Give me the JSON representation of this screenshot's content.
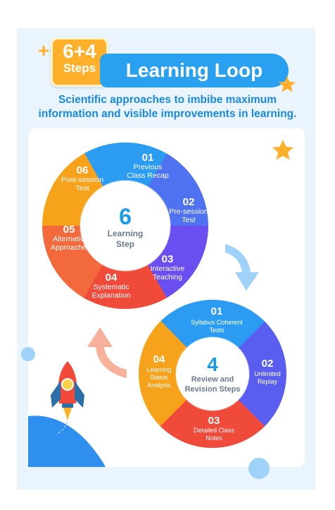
{
  "header": {
    "plus": "+",
    "badge_top": "6+4",
    "badge_bottom": "Steps",
    "title": "Learning Loop",
    "subtitle_line1": "Scientific approaches to imbibe maximum",
    "subtitle_line2": "information and visible improvements in learning."
  },
  "loop1": {
    "center_number": "6",
    "center_line1": "Learning",
    "center_line2": "Step",
    "steps": [
      {
        "num": "01",
        "line1": "Previous",
        "line2": "Class Recap",
        "color": "#2b9cf2"
      },
      {
        "num": "02",
        "line1": "Pre-session",
        "line2": "Test",
        "color": "#4f73f0"
      },
      {
        "num": "03",
        "line1": "Interactive",
        "line2": "Teaching",
        "color": "#6a4ef0"
      },
      {
        "num": "04",
        "line1": "Systematic",
        "line2": "Explanation",
        "color": "#f04a3a"
      },
      {
        "num": "05",
        "line1": "Alternative",
        "line2": "Approaches",
        "color": "#f26a3c"
      },
      {
        "num": "06",
        "line1": "Post-session",
        "line2": "Test",
        "color": "#f7a21b"
      }
    ]
  },
  "loop2": {
    "center_number": "4",
    "center_line1": "Review and",
    "center_line2": "Revision Steps",
    "steps": [
      {
        "num": "01",
        "line1": "Syllabus Coherent",
        "line2": "Tests",
        "line3": "",
        "color": "#2b9cf2"
      },
      {
        "num": "02",
        "line1": "Unlimited",
        "line2": "Replay",
        "line3": "",
        "color": "#5a5ef0"
      },
      {
        "num": "03",
        "line1": "Detailed Class",
        "line2": "Notes",
        "line3": "",
        "color": "#f04a3a"
      },
      {
        "num": "04",
        "line1": "Learning",
        "line2": "Status",
        "line3": "Analysis",
        "color": "#f7a21b"
      }
    ]
  },
  "colors": {
    "panel": "#e9f4fd",
    "title_bar": "#2aa0f0",
    "badge": "#ffb02a",
    "arrow_blue": "#9fd2f8",
    "arrow_orange": "#f7b09a",
    "star": "#ffb02a"
  },
  "icons": [
    "plus-icon",
    "star-icon",
    "rocket-icon",
    "arrow-icon"
  ]
}
